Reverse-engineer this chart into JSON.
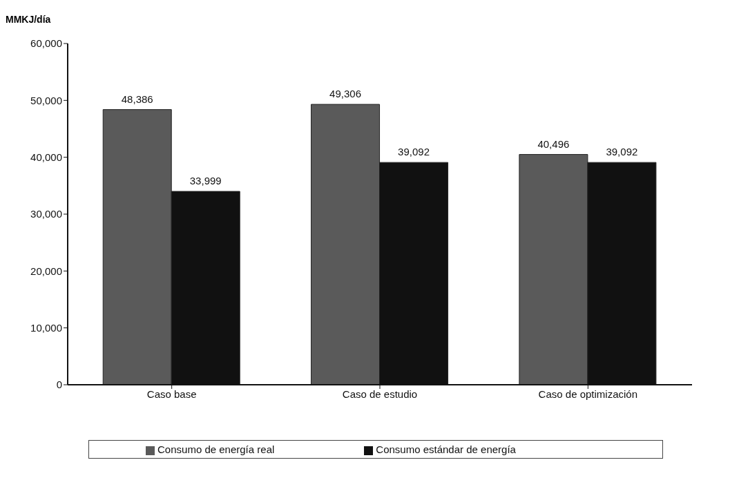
{
  "chart_data": {
    "type": "bar",
    "ylabel": "MMKJ/día",
    "categories": [
      "Caso base",
      "Caso de estudio",
      "Caso de optimización"
    ],
    "series": [
      {
        "name": "Consumo de energía real",
        "color": "#5a5a5a",
        "values": [
          48386,
          49306,
          40496
        ],
        "value_labels": [
          "48,386",
          "49,306",
          "40,496"
        ]
      },
      {
        "name": "Consumo estándar de energía",
        "color": "#111111",
        "values": [
          33999,
          39092,
          39092
        ],
        "value_labels": [
          "33,999",
          "39,092",
          "39,092"
        ]
      }
    ],
    "ylim": [
      0,
      60000
    ],
    "yticks": [
      {
        "value": 0,
        "label": "0"
      },
      {
        "value": 10000,
        "label": "10,000"
      },
      {
        "value": 20000,
        "label": "20,000"
      },
      {
        "value": 30000,
        "label": "30,000"
      },
      {
        "value": 40000,
        "label": "40,000"
      },
      {
        "value": 50000,
        "label": "50,000"
      },
      {
        "value": 60000,
        "label": "60,000"
      }
    ],
    "grid": false,
    "legend": "bottom"
  }
}
